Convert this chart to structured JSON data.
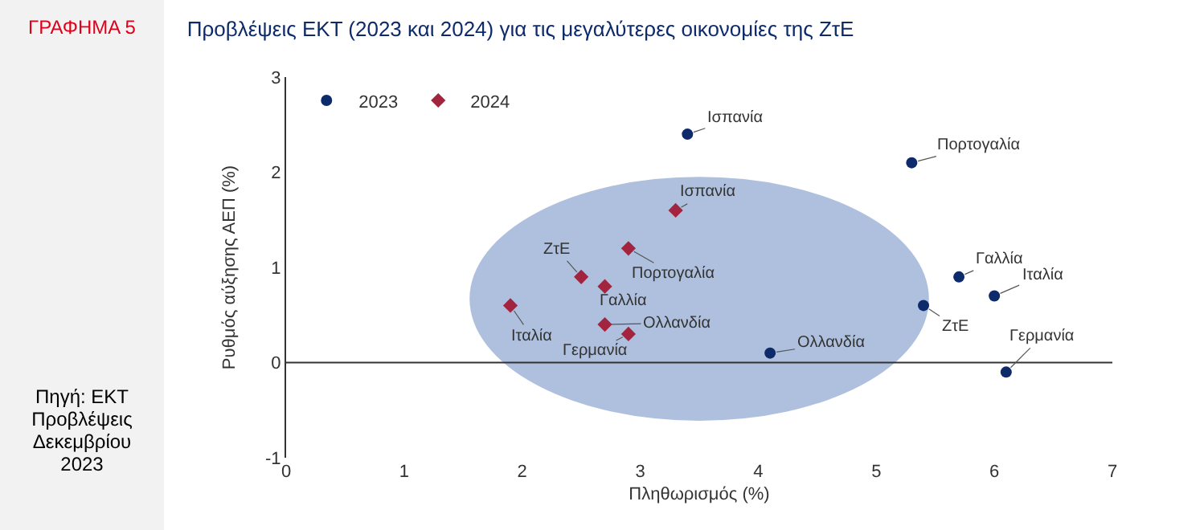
{
  "chart_data": {
    "type": "scatter",
    "title": "Προβλέψεις ΕΚΤ (2023 και 2024) για τις μεγαλύτερες οικονομίες της ΖτΕ",
    "xlabel": "Πληθωρισμός (%)",
    "ylabel": "Ρυθμός αύξησης ΑΕΠ (%)",
    "series": [
      {
        "name": "2023",
        "color": "#0d2a6b",
        "marker": "circle",
        "x": [
          3.4,
          5.3,
          5.7,
          6.0,
          5.4,
          4.1,
          6.1
        ],
        "values": [
          2.4,
          2.1,
          0.9,
          0.7,
          0.6,
          0.1,
          -0.1
        ]
      },
      {
        "name": "2024",
        "color": "#a3243f",
        "marker": "diamond",
        "x": [
          3.3,
          2.9,
          2.5,
          2.7,
          1.9,
          2.7,
          2.9
        ],
        "values": [
          1.6,
          1.2,
          0.9,
          0.8,
          0.6,
          0.4,
          0.3
        ]
      }
    ],
    "annotations": [
      {
        "text": "Ισπανία",
        "x": 3.4,
        "y": 2.4
      },
      {
        "text": "Πορτογαλία",
        "x": 5.3,
        "y": 2.1
      },
      {
        "text": "Γαλλία",
        "x": 5.7,
        "y": 0.9
      },
      {
        "text": "Ιταλία",
        "x": 6.0,
        "y": 0.7
      },
      {
        "text": "ΖτΕ",
        "x": 5.4,
        "y": 0.6
      },
      {
        "text": "Ολλανδία",
        "x": 4.1,
        "y": 0.1
      },
      {
        "text": "Γερμανία",
        "x": 6.1,
        "y": -0.1
      },
      {
        "text": "Ισπανία",
        "x": 3.3,
        "y": 1.6
      },
      {
        "text": "Πορτογαλία",
        "x": 2.9,
        "y": 1.2
      },
      {
        "text": "ΖτΕ",
        "x": 2.5,
        "y": 0.9
      },
      {
        "text": "Γαλλία",
        "x": 2.7,
        "y": 0.8
      },
      {
        "text": "Ιταλία",
        "x": 1.9,
        "y": 0.6
      },
      {
        "text": "Ολλανδία",
        "x": 2.7,
        "y": 0.4
      },
      {
        "text": "Γερμανία",
        "x": 2.9,
        "y": 0.3
      },
      "ΓΡΑΦΗΜΑ 5",
      "Πηγή: ΕΚΤ Προβλέψεις Δεκεμβρίου 2023"
    ],
    "xlim": [
      0,
      7
    ],
    "xticks": [
      0,
      1,
      2,
      3,
      4,
      5,
      6,
      7
    ],
    "ylim": [
      -1,
      3
    ],
    "yticks": [
      -1,
      0,
      1,
      2,
      3
    ],
    "grid": false,
    "legend": "top left",
    "ref_lines": [
      {
        "axis": "y",
        "value": 0,
        "color": "#333333"
      }
    ]
  }
}
